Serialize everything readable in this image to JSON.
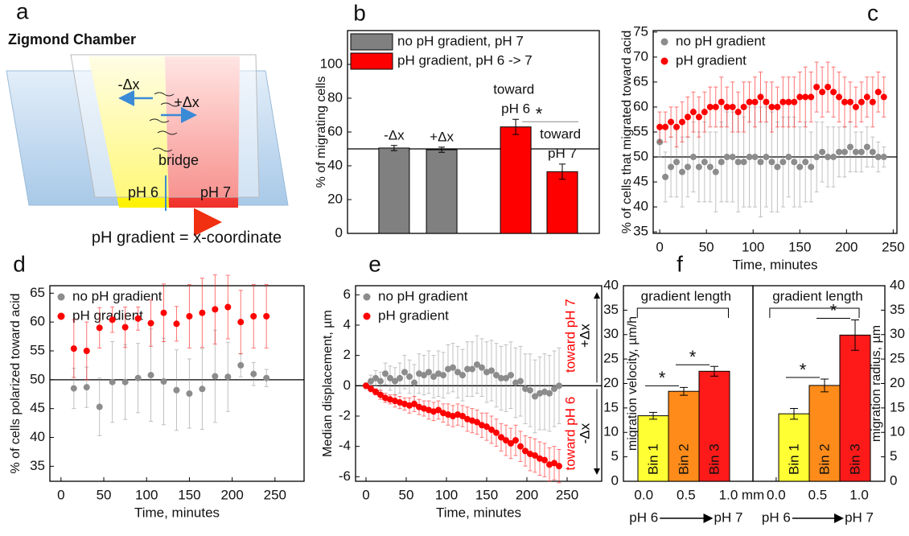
{
  "panel_a": {
    "label": "a",
    "title": "Zigmond Chamber",
    "left_shift": "-Δx",
    "right_shift": "+Δx",
    "bridge": "bridge",
    "left_well": "pH 6",
    "right_well": "pH 7",
    "caption": "pH gradient = x-coordinate"
  },
  "chart_data": [
    {
      "type": "bar",
      "panel": "b",
      "ylabel": "% of migrating cells",
      "categories": [
        "-Δx",
        "+Δx",
        "toward pH 6",
        "toward pH 7"
      ],
      "series": [
        {
          "name": "no pH gradient, pH 7",
          "color": "#808080",
          "values": [
            50.5,
            49.5,
            null,
            null
          ],
          "errors": [
            1.5,
            1.5,
            null,
            null
          ]
        },
        {
          "name": "pH gradient, pH 6 -> 7",
          "color": "#ff0000",
          "values": [
            null,
            null,
            63,
            36.5
          ],
          "errors": [
            null,
            null,
            4.5,
            4.5
          ]
        }
      ],
      "ylim": [
        0,
        120
      ],
      "yticks": [
        0,
        20,
        40,
        60,
        80,
        100
      ],
      "hline": 50,
      "annotations": [
        "*"
      ]
    },
    {
      "type": "scatter",
      "panel": "c",
      "ylabel": "% of cells that migrated toward acid",
      "xlabel": "Time, minutes",
      "x": [
        0,
        6,
        12,
        18,
        24,
        30,
        36,
        42,
        48,
        54,
        60,
        66,
        72,
        78,
        84,
        90,
        96,
        102,
        108,
        114,
        120,
        126,
        132,
        138,
        144,
        150,
        156,
        162,
        168,
        174,
        180,
        186,
        192,
        198,
        204,
        210,
        216,
        222,
        228,
        234,
        240
      ],
      "series": [
        {
          "name": "no pH gradient",
          "color": "#8c8c8c",
          "values": [
            53,
            46,
            48,
            49,
            47,
            48,
            50,
            48,
            49,
            48,
            47,
            49,
            50,
            50,
            49,
            49,
            50,
            50,
            49,
            50,
            49,
            48,
            49,
            50,
            49,
            48,
            49,
            48,
            50,
            51,
            50,
            50,
            51,
            51,
            52,
            51,
            51,
            52,
            51,
            50,
            50
          ],
          "errors": [
            3,
            5,
            6,
            7,
            7,
            6,
            7,
            7,
            8,
            7,
            8,
            8,
            9,
            9,
            10,
            9,
            10,
            10,
            11,
            10,
            10,
            9,
            9,
            8,
            9,
            8,
            8,
            7,
            7,
            6,
            6,
            6,
            5,
            5,
            5,
            4,
            4,
            4,
            3,
            3,
            2
          ]
        },
        {
          "name": "pH gradient",
          "color": "#ff0000",
          "values": [
            56,
            56,
            57,
            56,
            57,
            58,
            59,
            58,
            59,
            60,
            60,
            61,
            60,
            60,
            59,
            60,
            61,
            61,
            62,
            61,
            60,
            60,
            61,
            61,
            61,
            62,
            62,
            62,
            64,
            63,
            64,
            63,
            62,
            61,
            61,
            60,
            61,
            62,
            61,
            63,
            62
          ],
          "errors": [
            3,
            3,
            3,
            4,
            4,
            4,
            4,
            4,
            4,
            4,
            4,
            5,
            4,
            5,
            4,
            5,
            4,
            5,
            5,
            4,
            5,
            4,
            5,
            5,
            5,
            5,
            6,
            5,
            5,
            5,
            5,
            5,
            5,
            5,
            4,
            4,
            4,
            4,
            5,
            4,
            4
          ]
        }
      ],
      "xlim": [
        -7,
        254
      ],
      "xticks": [
        0,
        50,
        100,
        150,
        200,
        250
      ],
      "ylim": [
        34.7,
        75.3
      ],
      "yticks": [
        35,
        40,
        45,
        50,
        55,
        60,
        65,
        70,
        75
      ],
      "hline": 50
    },
    {
      "type": "scatter",
      "panel": "d",
      "ylabel": "% of cells polarized toward acid",
      "xlabel": "Time, minutes",
      "x": [
        15,
        30,
        45,
        60,
        75,
        90,
        105,
        120,
        135,
        150,
        165,
        180,
        195,
        210,
        225,
        240
      ],
      "series": [
        {
          "name": "no pH gradient",
          "color": "#8c8c8c",
          "values": [
            48.5,
            48.7,
            45.3,
            49.6,
            49.6,
            50.3,
            50.8,
            49.7,
            48.2,
            47.6,
            48.4,
            50.6,
            50.5,
            52.5,
            51,
            50.3
          ],
          "errors": [
            3.5,
            3.5,
            5,
            7,
            6.5,
            6,
            8,
            7.5,
            7,
            6,
            7,
            8,
            6,
            2,
            2,
            1.5
          ]
        },
        {
          "name": "pH gradient",
          "color": "#ff0000",
          "values": [
            55.4,
            55,
            59,
            60.4,
            59.1,
            60.6,
            59.8,
            61.6,
            59.7,
            61,
            61.6,
            62.2,
            62.6,
            60,
            61,
            61
          ],
          "errors": [
            5,
            5,
            3.5,
            2.2,
            3.5,
            2,
            4,
            5,
            3,
            5.5,
            6,
            6,
            5.5,
            5.5,
            5.5,
            5.5
          ]
        }
      ],
      "xlim": [
        -13,
        284
      ],
      "xticks": [
        0,
        50,
        100,
        150,
        200,
        250
      ],
      "ylim": [
        32.4,
        66.3
      ],
      "yticks": [
        35,
        40,
        45,
        50,
        55,
        60,
        65
      ],
      "hline": 50
    },
    {
      "type": "scatter",
      "panel": "e",
      "ylabel": "Median displacement, µm",
      "xlabel": "Time, minutes",
      "x": [
        0,
        6,
        12,
        18,
        24,
        30,
        36,
        42,
        48,
        54,
        60,
        66,
        72,
        78,
        84,
        90,
        96,
        102,
        108,
        114,
        120,
        126,
        132,
        138,
        144,
        150,
        156,
        162,
        168,
        174,
        180,
        186,
        192,
        198,
        204,
        210,
        216,
        222,
        228,
        234,
        240
      ],
      "series": [
        {
          "name": "no pH gradient",
          "color": "#8c8c8c",
          "values": [
            0,
            0.3,
            0.5,
            0.3,
            0.8,
            0.5,
            0.3,
            0.5,
            0.9,
            0.6,
            0.2,
            0.8,
            0.7,
            0.9,
            0.6,
            0.8,
            0.7,
            1.1,
            1.2,
            0.9,
            0.7,
            1.1,
            1.1,
            1.4,
            1.2,
            0.9,
            1.0,
            0.7,
            0.5,
            0.5,
            0.7,
            0.2,
            0.3,
            -0.2,
            -0.3,
            -0.7,
            -0.5,
            -0.4,
            -0.5,
            -0.2,
            0
          ],
          "errors": [
            0.2,
            0.4,
            0.5,
            0.6,
            0.7,
            0.8,
            0.9,
            1.0,
            1.1,
            1.1,
            1.2,
            1.3,
            1.3,
            1.4,
            1.4,
            1.5,
            1.5,
            1.6,
            1.6,
            1.7,
            1.7,
            1.8,
            1.8,
            1.9,
            1.9,
            2.0,
            2.0,
            2.1,
            2.1,
            2.2,
            2.2,
            2.3,
            2.3,
            2.3,
            2.4,
            2.4,
            2.4,
            2.5,
            2.5,
            2.5,
            2.5
          ]
        },
        {
          "name": "pH gradient",
          "color": "#ff0000",
          "values": [
            0,
            -0.2,
            -0.4,
            -0.6,
            -0.8,
            -0.9,
            -1.0,
            -1.1,
            -1.2,
            -1.3,
            -1.2,
            -1.4,
            -1.5,
            -1.6,
            -1.7,
            -1.6,
            -1.8,
            -1.9,
            -2.0,
            -1.9,
            -2.0,
            -2.2,
            -2.3,
            -2.4,
            -2.6,
            -2.7,
            -2.9,
            -3.1,
            -3.4,
            -3.6,
            -3.8,
            -3.6,
            -4.0,
            -4.3,
            -4.5,
            -4.6,
            -4.8,
            -4.9,
            -5.2,
            -5.1,
            -5.3
          ],
          "errors": [
            0.1,
            0.2,
            0.2,
            0.3,
            0.3,
            0.3,
            0.4,
            0.4,
            0.4,
            0.5,
            0.5,
            0.5,
            0.5,
            0.6,
            0.6,
            0.6,
            0.6,
            0.7,
            0.7,
            0.7,
            0.7,
            0.8,
            0.8,
            0.8,
            0.8,
            0.9,
            0.9,
            0.9,
            0.9,
            1.0,
            1.0,
            1.0,
            1.0,
            1.0,
            1.1,
            1.1,
            1.1,
            1.1,
            1.1,
            1.1,
            1.1
          ]
        }
      ],
      "xlim": [
        -13,
        293
      ],
      "xticks": [
        0,
        50,
        100,
        150,
        200,
        250
      ],
      "ylim": [
        -6.3,
        6.6
      ],
      "yticks": [
        -6,
        -4,
        -2,
        0,
        2,
        4,
        6
      ],
      "hline": 0,
      "annotations": [
        "toward pH 7",
        "+Δx",
        "toward pH 6",
        "-Δx"
      ]
    },
    {
      "type": "bar",
      "panel": "f",
      "ylabel": "migration velocity, µm/h",
      "categories": [
        "Bin 1",
        "Bin 2",
        "Bin 3"
      ],
      "colors": [
        "#ffff33",
        "#ff8c1a",
        "#ff1a1a"
      ],
      "values": [
        13.4,
        18.4,
        22.5
      ],
      "errors": [
        0.7,
        0.8,
        1.0
      ],
      "ylim": [
        0,
        40
      ],
      "yticks": [
        0,
        5,
        10,
        15,
        20,
        25,
        30,
        35,
        40
      ],
      "yaxis_side": "left",
      "xlim": [
        -0.24,
        1.29
      ],
      "xticks": [
        {
          "value": 0,
          "label": "0.0"
        },
        {
          "value": 0.5,
          "label": "0.5"
        },
        {
          "value": 1,
          "label": "1.0"
        }
      ],
      "x_unit": "mm",
      "x_note": [
        "pH 6",
        "pH 7"
      ],
      "annotations": [
        "gradient length",
        "*",
        "*"
      ]
    },
    {
      "type": "bar",
      "ylabel": "migration radius, µm",
      "categories": [
        "Bin 1",
        "Bin 2",
        "Bin 3"
      ],
      "colors": [
        "#ffff33",
        "#ff8c1a",
        "#ff1a1a"
      ],
      "values": [
        13.8,
        19.6,
        29.9
      ],
      "errors": [
        1.1,
        1.3,
        3.1
      ],
      "ylim": [
        0,
        40
      ],
      "yticks": [
        0,
        5,
        10,
        15,
        20,
        25,
        30,
        35,
        40
      ],
      "yaxis_side": "right",
      "xlim": [
        -0.28,
        1.31
      ],
      "xticks": [
        {
          "value": 0,
          "label": "0.0"
        },
        {
          "value": 0.5,
          "label": "0.5"
        },
        {
          "value": 1,
          "label": "1.0"
        }
      ],
      "x_note": [
        "pH 6",
        "pH 7"
      ],
      "annotations": [
        "gradient length",
        "*",
        "*"
      ]
    }
  ]
}
